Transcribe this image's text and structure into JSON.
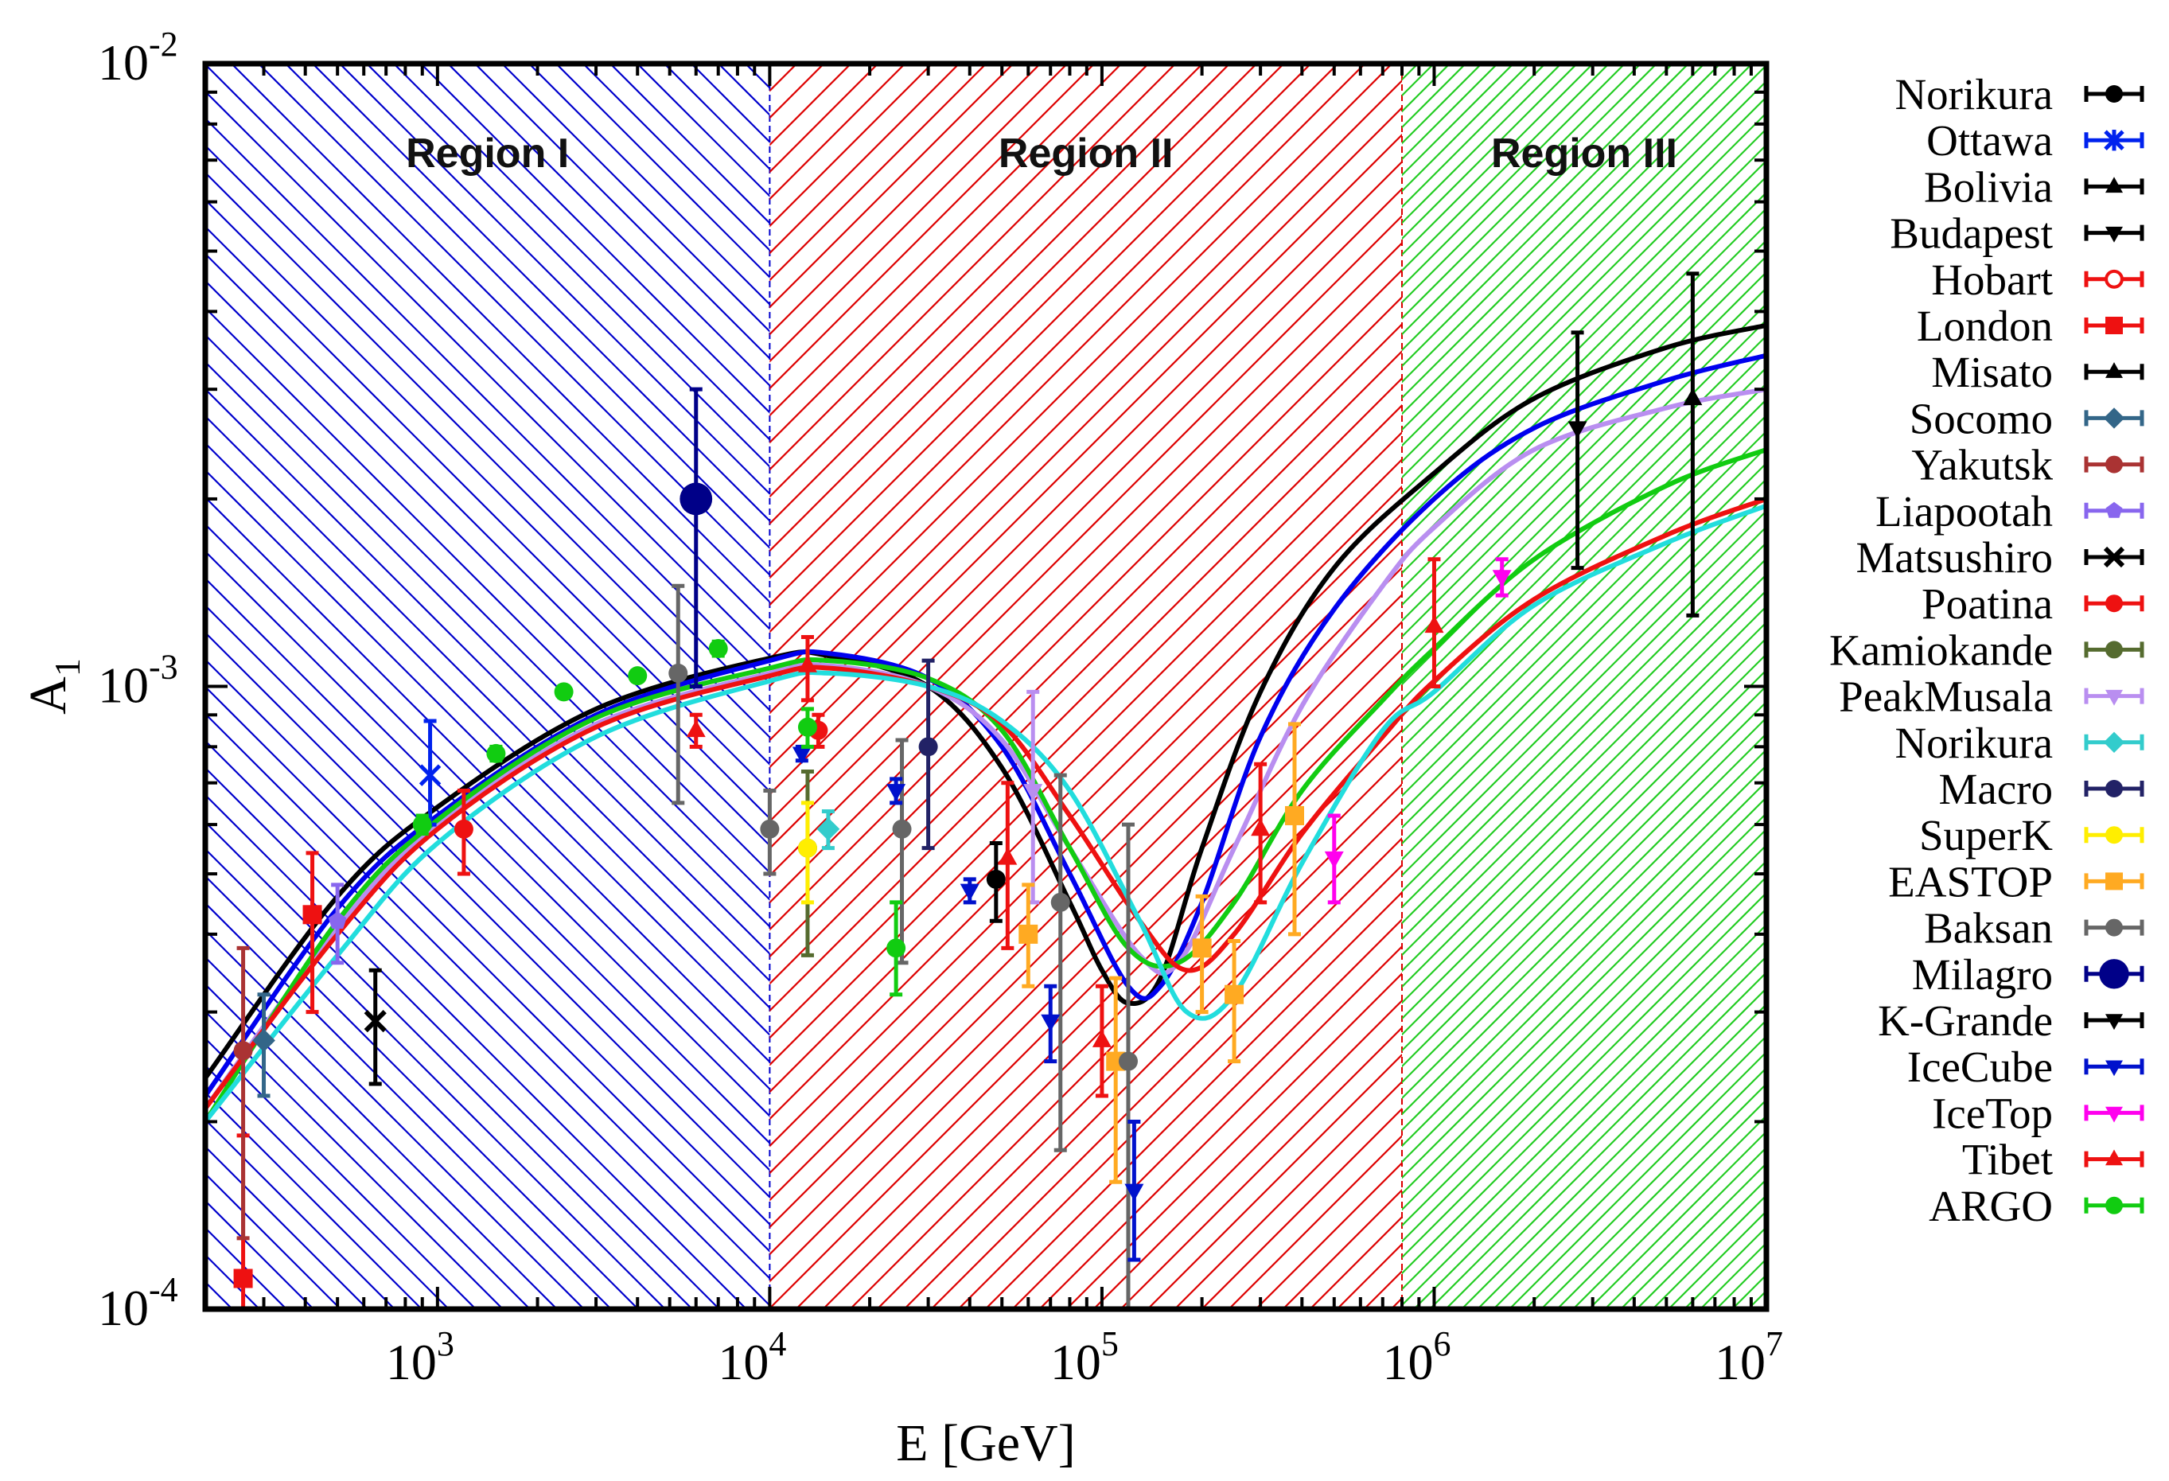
{
  "chart_data": {
    "type": "scatter",
    "title": "",
    "xlabel": "E [GeV]",
    "ylabel": "A",
    "ylabel_sub": "1",
    "xscale": "log",
    "yscale": "log",
    "xlim": [
      200,
      10000000
    ],
    "ylim": [
      0.0001,
      0.01
    ],
    "grid": false,
    "legend_position": "right outside",
    "x_ticks": [
      {
        "value": 1000,
        "base": "10",
        "exp": "3"
      },
      {
        "value": 10000,
        "base": "10",
        "exp": "4"
      },
      {
        "value": 100000,
        "base": "10",
        "exp": "5"
      },
      {
        "value": 1000000,
        "base": "10",
        "exp": "6"
      },
      {
        "value": 10000000,
        "base": "10",
        "exp": "7"
      }
    ],
    "y_ticks": [
      {
        "value": 0.0001,
        "base": "10",
        "exp": "-4"
      },
      {
        "value": 0.001,
        "base": "10",
        "exp": "-3"
      },
      {
        "value": 0.01,
        "base": "10",
        "exp": "-2"
      }
    ],
    "regions": [
      {
        "label": "Region I",
        "x_from": 200,
        "x_to": 10000,
        "color": "#0000cc",
        "hatch": "backslash"
      },
      {
        "label": "Region II",
        "x_from": 10000,
        "x_to": 800000,
        "color": "#dd0000",
        "hatch": "slash"
      },
      {
        "label": "Region III",
        "x_from": 800000,
        "x_to": 10000000,
        "color": "#22cc22",
        "hatch": "slash-dense"
      }
    ],
    "curves": [
      {
        "name": "model-black",
        "color": "#000000",
        "points": [
          [
            200,
            0.000235
          ],
          [
            500,
            0.00046
          ],
          [
            1000,
            0.00064
          ],
          [
            3000,
            0.00092
          ],
          [
            10000,
            0.00111
          ],
          [
            15000,
            0.00112
          ],
          [
            30000,
            0.001
          ],
          [
            50000,
            0.00074
          ],
          [
            80000,
            0.00045
          ],
          [
            100000,
            0.00035
          ],
          [
            120000,
            0.00031
          ],
          [
            150000,
            0.00034
          ],
          [
            200000,
            0.00055
          ],
          [
            300000,
            0.00098
          ],
          [
            500000,
            0.00155
          ],
          [
            1000000,
            0.0022
          ],
          [
            2000000,
            0.0029
          ],
          [
            5000000,
            0.0035
          ],
          [
            10000000,
            0.0038
          ]
        ]
      },
      {
        "name": "model-blue",
        "color": "#0000ee",
        "points": [
          [
            200,
            0.00022
          ],
          [
            500,
            0.00044
          ],
          [
            1000,
            0.00062
          ],
          [
            3000,
            0.0009
          ],
          [
            10000,
            0.0011
          ],
          [
            15000,
            0.00113
          ],
          [
            30000,
            0.00103
          ],
          [
            50000,
            0.0008
          ],
          [
            80000,
            0.0005
          ],
          [
            120000,
            0.00033
          ],
          [
            150000,
            0.00033
          ],
          [
            200000,
            0.00045
          ],
          [
            300000,
            0.00083
          ],
          [
            500000,
            0.00133
          ],
          [
            1000000,
            0.002
          ],
          [
            2000000,
            0.0026
          ],
          [
            5000000,
            0.0031
          ],
          [
            10000000,
            0.0034
          ]
        ]
      },
      {
        "name": "model-purple",
        "color": "#b98ef0",
        "points": [
          [
            200,
            0.00021
          ],
          [
            500,
            0.00041
          ],
          [
            1000,
            0.0006
          ],
          [
            3000,
            0.00087
          ],
          [
            10000,
            0.00105
          ],
          [
            15000,
            0.00108
          ],
          [
            30000,
            0.001
          ],
          [
            50000,
            0.00082
          ],
          [
            80000,
            0.00055
          ],
          [
            130000,
            0.00037
          ],
          [
            170000,
            0.00036
          ],
          [
            250000,
            0.00055
          ],
          [
            400000,
            0.00093
          ],
          [
            700000,
            0.00145
          ],
          [
            1000000,
            0.0018
          ],
          [
            2000000,
            0.0024
          ],
          [
            5000000,
            0.0028
          ],
          [
            10000000,
            0.003
          ]
        ]
      },
      {
        "name": "model-green",
        "color": "#11cc11",
        "points": [
          [
            200,
            0.0002
          ],
          [
            500,
            0.00042
          ],
          [
            1000,
            0.00061
          ],
          [
            3000,
            0.00089
          ],
          [
            10000,
            0.00107
          ],
          [
            15000,
            0.0011
          ],
          [
            30000,
            0.00103
          ],
          [
            50000,
            0.00085
          ],
          [
            80000,
            0.00055
          ],
          [
            120000,
            0.00038
          ],
          [
            170000,
            0.00036
          ],
          [
            250000,
            0.00045
          ],
          [
            400000,
            0.00068
          ],
          [
            700000,
            0.00095
          ],
          [
            1000000,
            0.00115
          ],
          [
            2000000,
            0.0016
          ],
          [
            5000000,
            0.0021
          ],
          [
            10000000,
            0.0024
          ]
        ]
      },
      {
        "name": "model-red",
        "color": "#ee1111",
        "points": [
          [
            200,
            0.00021
          ],
          [
            500,
            0.0004
          ],
          [
            1000,
            0.00059
          ],
          [
            3000,
            0.00086
          ],
          [
            10000,
            0.00104
          ],
          [
            15000,
            0.00107
          ],
          [
            30000,
            0.001
          ],
          [
            50000,
            0.00087
          ],
          [
            80000,
            0.00062
          ],
          [
            130000,
            0.00042
          ],
          [
            180000,
            0.00035
          ],
          [
            250000,
            0.0004
          ],
          [
            400000,
            0.00058
          ],
          [
            700000,
            0.00083
          ],
          [
            1000000,
            0.00102
          ],
          [
            2000000,
            0.00138
          ],
          [
            5000000,
            0.00175
          ],
          [
            10000000,
            0.002
          ]
        ]
      },
      {
        "name": "model-cyan",
        "color": "#22dddd",
        "points": [
          [
            200,
            0.0002
          ],
          [
            500,
            0.00037
          ],
          [
            1000,
            0.00056
          ],
          [
            3000,
            0.00083
          ],
          [
            10000,
            0.00102
          ],
          [
            15000,
            0.00105
          ],
          [
            30000,
            0.001
          ],
          [
            50000,
            0.00088
          ],
          [
            80000,
            0.00068
          ],
          [
            130000,
            0.00042
          ],
          [
            180000,
            0.0003
          ],
          [
            250000,
            0.00032
          ],
          [
            400000,
            0.00052
          ],
          [
            700000,
            0.00085
          ],
          [
            1000000,
            0.00098
          ],
          [
            2000000,
            0.00135
          ],
          [
            5000000,
            0.0017
          ],
          [
            10000000,
            0.00195
          ]
        ]
      }
    ],
    "series": [
      {
        "name": "Norikura",
        "color": "#000000",
        "marker": "circle",
        "points": [
          [
            48000,
            0.00049,
            0.00042,
            0.00056
          ]
        ]
      },
      {
        "name": "Ottawa",
        "color": "#0022ee",
        "marker": "star",
        "points": [
          [
            950,
            0.00072,
            0.0006,
            0.00088
          ]
        ]
      },
      {
        "name": "Bolivia",
        "color": "#000000",
        "marker": "triangle-up",
        "points": []
      },
      {
        "name": "Budapest",
        "color": "#000000",
        "marker": "triangle-down",
        "points": [
          [
            2700000,
            0.0026,
            0.00155,
            0.0037
          ]
        ]
      },
      {
        "name": "Hobart",
        "color": "#ee1111",
        "marker": "circle-open",
        "points": []
      },
      {
        "name": "London",
        "color": "#ee1111",
        "marker": "square",
        "points": [
          [
            420,
            0.00043,
            0.0003,
            0.00054
          ],
          [
            260,
            0.000112,
            0.0001,
            0.00019
          ]
        ]
      },
      {
        "name": "Misato",
        "color": "#000000",
        "marker": "triangle-up",
        "points": [
          [
            6000000,
            0.0029,
            0.0013,
            0.0046
          ]
        ]
      },
      {
        "name": "Socomo",
        "color": "#336688",
        "marker": "diamond",
        "points": [
          [
            300,
            0.00027,
            0.00022,
            0.00032
          ]
        ]
      },
      {
        "name": "Yakutsk",
        "color": "#aa3333",
        "marker": "circle",
        "points": [
          [
            260,
            0.00026,
            0.00013,
            0.00038
          ]
        ]
      },
      {
        "name": "Liapootah",
        "color": "#8866ee",
        "marker": "pentagon",
        "points": [
          [
            500,
            0.00042,
            0.00036,
            0.00048
          ]
        ]
      },
      {
        "name": "Matsushiro",
        "color": "#000000",
        "marker": "cross",
        "points": [
          [
            650,
            0.00029,
            0.00023,
            0.00035
          ]
        ]
      },
      {
        "name": "Poatina",
        "color": "#ee1111",
        "marker": "circle",
        "points": [
          [
            1200,
            0.00059,
            0.0005,
            0.00068
          ],
          [
            14000,
            0.00085,
            0.0008,
            0.0009
          ]
        ]
      },
      {
        "name": "Kamiokande",
        "color": "#556b2f",
        "marker": "circle",
        "points": [
          [
            13000,
            0.00055,
            0.00037,
            0.00073
          ]
        ]
      },
      {
        "name": "PeakMusala",
        "color": "#b98ef0",
        "marker": "triangle-down",
        "points": [
          [
            62000,
            0.00068,
            0.00045,
            0.00098
          ]
        ]
      },
      {
        "name": "Norikura",
        "color": "#33cccc",
        "marker": "diamond",
        "points": [
          [
            15000,
            0.00059,
            0.00055,
            0.00063
          ]
        ]
      },
      {
        "name": "Macro",
        "color": "#222266",
        "marker": "circle",
        "points": [
          [
            30000,
            0.0008,
            0.00055,
            0.0011
          ]
        ]
      },
      {
        "name": "SuperK",
        "color": "#ffee00",
        "marker": "circle",
        "points": [
          [
            13000,
            0.00055,
            0.00045,
            0.00065
          ]
        ]
      },
      {
        "name": "EASTOP",
        "color": "#ffaa22",
        "marker": "square",
        "points": [
          [
            60000,
            0.0004,
            0.00033,
            0.00048
          ],
          [
            110000,
            0.00025,
            0.00016,
            0.00034
          ],
          [
            200000,
            0.00038,
            0.0003,
            0.00046
          ],
          [
            250000,
            0.00032,
            0.00025,
            0.00039
          ],
          [
            380000,
            0.00062,
            0.0004,
            0.00087
          ]
        ]
      },
      {
        "name": "Baksan",
        "color": "#666666",
        "marker": "circle",
        "points": [
          [
            10000,
            0.00059,
            0.0005,
            0.00068
          ],
          [
            5300,
            0.00105,
            0.00065,
            0.00145
          ],
          [
            25000,
            0.00059,
            0.00036,
            0.00082
          ],
          [
            75000,
            0.00045,
            0.00018,
            0.00072
          ],
          [
            120000,
            0.00025,
            0.0001,
            0.0006
          ]
        ]
      },
      {
        "name": "Milagro",
        "color": "#000088",
        "marker": "circle-big",
        "points": [
          [
            6000,
            0.002,
            0.001,
            0.003
          ]
        ]
      },
      {
        "name": "K-Grande",
        "color": "#000000",
        "marker": "triangle-down",
        "points": []
      },
      {
        "name": "IceCube",
        "color": "#0011cc",
        "marker": "triangle-down",
        "points": [
          [
            12500,
            0.00078,
            0.00076,
            0.0008
          ],
          [
            24000,
            0.00068,
            0.00065,
            0.00071
          ],
          [
            40000,
            0.00047,
            0.00045,
            0.00049
          ],
          [
            70000,
            0.00029,
            0.00025,
            0.00033
          ],
          [
            125000,
            0.000155,
            0.00012,
            0.0002
          ]
        ]
      },
      {
        "name": "IceTop",
        "color": "#ff00ee",
        "marker": "triangle-down",
        "points": [
          [
            500000,
            0.00053,
            0.00045,
            0.00062
          ],
          [
            1600000,
            0.0015,
            0.0014,
            0.0016
          ]
        ]
      },
      {
        "name": "Tibet",
        "color": "#ee1111",
        "marker": "triangle-up",
        "points": [
          [
            6000,
            0.00085,
            0.0008,
            0.0009
          ],
          [
            13000,
            0.00108,
            0.00095,
            0.0012
          ],
          [
            52000,
            0.00053,
            0.00038,
            0.0007
          ],
          [
            100000,
            0.00027,
            0.00022,
            0.00033
          ],
          [
            300000,
            0.00059,
            0.00045,
            0.00075
          ],
          [
            1000000,
            0.00125,
            0.001,
            0.0016
          ]
        ]
      },
      {
        "name": "ARGO",
        "color": "#11cc11",
        "marker": "circle",
        "points": [
          [
            900,
            0.0006,
            0.00058,
            0.00062
          ],
          [
            1500,
            0.00078,
            0.00076,
            0.0008
          ],
          [
            2400,
            0.00098,
            0.00096,
            0.001
          ],
          [
            4000,
            0.00104,
            0.00102,
            0.00106
          ],
          [
            7000,
            0.00115,
            0.00112,
            0.00118
          ],
          [
            13000,
            0.00086,
            0.0008,
            0.00092
          ],
          [
            24000,
            0.00038,
            0.00032,
            0.00045
          ]
        ]
      }
    ]
  }
}
